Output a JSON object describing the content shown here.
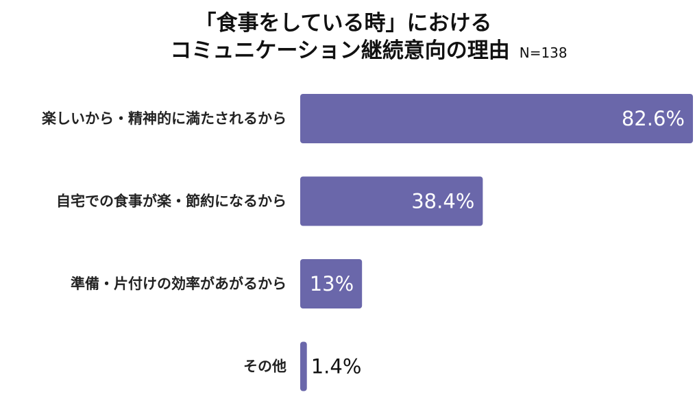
{
  "chart_data": {
    "type": "bar",
    "orientation": "horizontal",
    "title_line1": "「食事をしている時」における",
    "title_line2": "コミュニケーション継続意向の理由",
    "sample_size": "N=138",
    "categories": [
      "楽しいから・精神的に満たされるから",
      "自宅での食事が楽・節約になるから",
      "準備・片付けの効率があがるから",
      "その他"
    ],
    "values": [
      82.6,
      38.4,
      13,
      1.4
    ],
    "value_labels": [
      "82.6%",
      "38.4%",
      "13%",
      "1.4%"
    ],
    "xlim": [
      0,
      82.6
    ],
    "bar_color": "#6a67aa",
    "grid": false
  }
}
